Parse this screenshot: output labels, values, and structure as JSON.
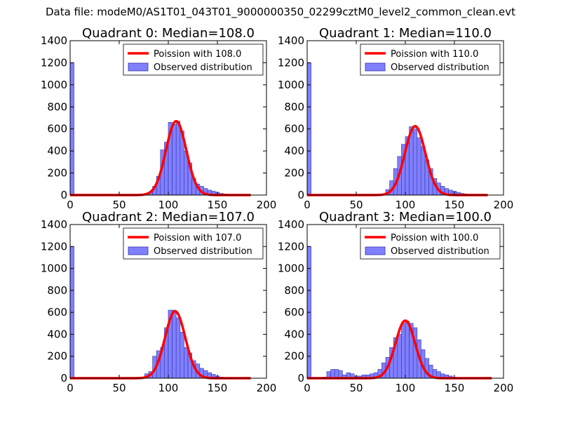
{
  "suptitle": "Data file: modeM0/AS1T01_043T01_9000000350_02299cztM0_level2_common_clean.evt",
  "colors": {
    "bar_fill": "#8080ff",
    "bar_edge": "#3333aa",
    "curve": "#ff0000"
  },
  "chart_data": [
    {
      "type": "bar",
      "title": "Quadrant 0: Median=108.0",
      "xlabel": "",
      "ylabel": "",
      "xlim": [
        0,
        200
      ],
      "ylim": [
        0,
        1400
      ],
      "xticks": [
        "0",
        "50",
        "100",
        "150",
        "200"
      ],
      "yticks": [
        "0",
        "200",
        "400",
        "600",
        "800",
        "1000",
        "1200",
        "1400"
      ],
      "legend_position": "top-right",
      "series": [
        {
          "name": "Observed distribution",
          "bin_width": 4,
          "bins_start": [
            0,
            72,
            76,
            80,
            84,
            88,
            92,
            96,
            100,
            104,
            108,
            112,
            116,
            120,
            124,
            128,
            132,
            136,
            140,
            144,
            148,
            152,
            156,
            160,
            164,
            168,
            172
          ],
          "values": [
            1200,
            5,
            15,
            30,
            80,
            170,
            410,
            480,
            660,
            640,
            670,
            580,
            400,
            290,
            150,
            100,
            80,
            60,
            45,
            35,
            25,
            15,
            10,
            8,
            5,
            3,
            2
          ]
        },
        {
          "name": "Poission with 108.0",
          "lambda": 108.0,
          "peak": 670,
          "x_range": [
            0,
            184
          ]
        }
      ]
    },
    {
      "type": "bar",
      "title": "Quadrant 1: Median=110.0",
      "xlabel": "",
      "ylabel": "",
      "xlim": [
        0,
        200
      ],
      "ylim": [
        0,
        1400
      ],
      "xticks": [
        "0",
        "50",
        "100",
        "150",
        "200"
      ],
      "yticks": [
        "0",
        "200",
        "400",
        "600",
        "800",
        "1000",
        "1200",
        "1400"
      ],
      "legend_position": "top-right",
      "series": [
        {
          "name": "Observed distribution",
          "bin_width": 4,
          "bins_start": [
            0,
            76,
            80,
            84,
            88,
            92,
            96,
            100,
            104,
            108,
            112,
            116,
            120,
            124,
            128,
            132,
            136,
            140,
            144,
            148,
            152,
            156,
            160,
            164,
            168,
            172
          ],
          "values": [
            1200,
            10,
            50,
            130,
            240,
            350,
            460,
            530,
            620,
            600,
            520,
            440,
            320,
            240,
            150,
            110,
            80,
            60,
            45,
            35,
            25,
            15,
            10,
            5,
            3,
            2
          ]
        },
        {
          "name": "Poission with 110.0",
          "lambda": 110.0,
          "peak": 625,
          "x_range": [
            0,
            184
          ]
        }
      ]
    },
    {
      "type": "bar",
      "title": "Quadrant 2: Median=107.0",
      "xlabel": "",
      "ylabel": "",
      "xlim": [
        0,
        200
      ],
      "ylim": [
        0,
        1400
      ],
      "xticks": [
        "0",
        "50",
        "100",
        "150",
        "200"
      ],
      "yticks": [
        "0",
        "200",
        "400",
        "600",
        "800",
        "1000",
        "1200",
        "1400"
      ],
      "legend_position": "top-right",
      "series": [
        {
          "name": "Observed distribution",
          "bin_width": 4,
          "bins_start": [
            0,
            72,
            76,
            80,
            84,
            88,
            92,
            96,
            100,
            104,
            108,
            112,
            116,
            120,
            124,
            128,
            132,
            136,
            140,
            144,
            148,
            152,
            156,
            160,
            164,
            168
          ],
          "values": [
            1200,
            10,
            40,
            60,
            200,
            250,
            280,
            460,
            620,
            620,
            550,
            420,
            280,
            230,
            160,
            130,
            90,
            70,
            50,
            35,
            20,
            10,
            5,
            3,
            2,
            1
          ]
        },
        {
          "name": "Poission with 107.0",
          "lambda": 107.0,
          "peak": 610,
          "x_range": [
            0,
            184
          ]
        }
      ]
    },
    {
      "type": "bar",
      "title": "Quadrant 3: Median=100.0",
      "xlabel": "",
      "ylabel": "",
      "xlim": [
        0,
        200
      ],
      "ylim": [
        0,
        1400
      ],
      "xticks": [
        "0",
        "50",
        "100",
        "150",
        "200"
      ],
      "yticks": [
        "0",
        "200",
        "400",
        "600",
        "800",
        "1000",
        "1200",
        "1400"
      ],
      "legend_position": "top-right",
      "series": [
        {
          "name": "Observed distribution",
          "bin_width": 4,
          "bins_start": [
            0,
            16,
            20,
            24,
            28,
            32,
            36,
            40,
            44,
            48,
            52,
            56,
            60,
            64,
            68,
            72,
            76,
            80,
            84,
            88,
            92,
            96,
            100,
            104,
            108,
            112,
            116,
            120,
            124,
            128,
            132,
            136,
            140,
            144,
            148,
            152,
            156,
            160
          ],
          "values": [
            1200,
            10,
            60,
            80,
            80,
            70,
            30,
            50,
            40,
            20,
            20,
            30,
            30,
            40,
            50,
            80,
            140,
            190,
            280,
            370,
            400,
            500,
            520,
            500,
            460,
            350,
            260,
            180,
            120,
            80,
            60,
            40,
            30,
            20,
            10,
            5,
            3,
            2
          ]
        },
        {
          "name": "Poission with 100.0",
          "lambda": 100.0,
          "peak": 525,
          "x_range": [
            0,
            188
          ]
        }
      ]
    }
  ]
}
